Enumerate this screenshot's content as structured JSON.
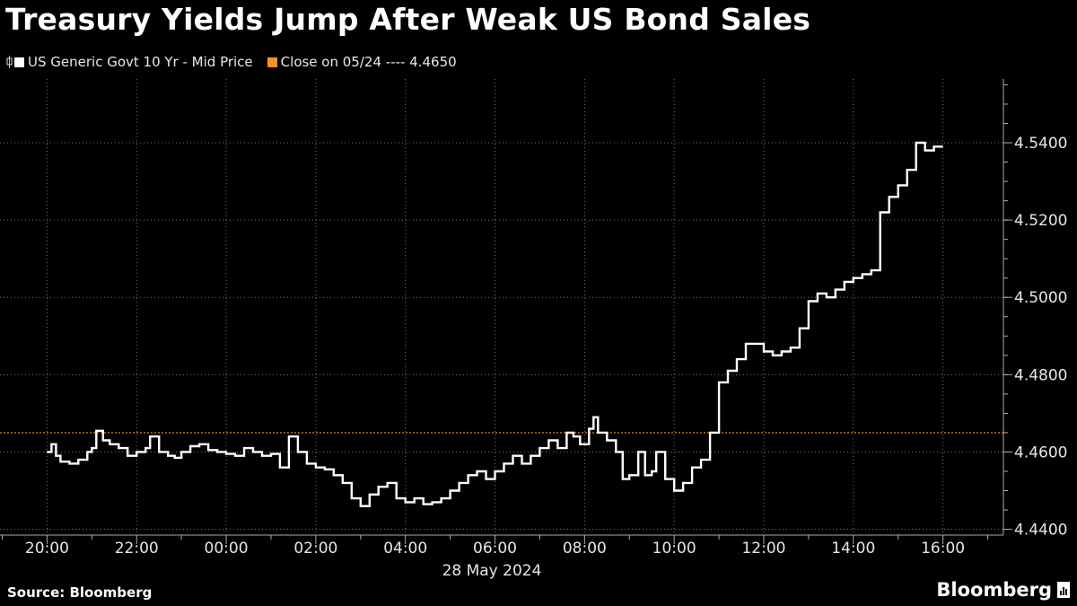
{
  "title": "Treasury Yields Jump After Weak US Bond Sales",
  "legend": {
    "series_label": "US Generic Govt 10 Yr - Mid Price",
    "close_label": "Close on 05/24 ---- 4.4650"
  },
  "source": "Source: Bloomberg",
  "logo_text": "Bloomberg",
  "colors": {
    "background": "#000000",
    "series": "#ffffff",
    "close_line": "#f7931e",
    "grid": "#777777"
  },
  "chart_data": {
    "type": "line",
    "title": "Treasury Yields Jump After Weak US Bond Sales",
    "xlabel": "28 May 2024",
    "ylabel": "",
    "x_ticks": [
      "20:00",
      "22:00",
      "00:00",
      "02:00",
      "04:00",
      "06:00",
      "08:00",
      "10:00",
      "12:00",
      "14:00",
      "16:00"
    ],
    "y_ticks": [
      4.44,
      4.46,
      4.48,
      4.5,
      4.52,
      4.54
    ],
    "ylim": [
      4.4385,
      4.5565
    ],
    "x_hour_range": [
      18.95,
      41.35
    ],
    "grid": true,
    "legend_position": "top-left",
    "reference_line": {
      "name": "Close on 05/24",
      "value": 4.465
    },
    "series": [
      {
        "name": "US Generic Govt 10 Yr - Mid Price",
        "x": [
          20.0,
          20.1,
          20.2,
          20.3,
          20.5,
          20.7,
          20.9,
          21.0,
          21.1,
          21.25,
          21.4,
          21.6,
          21.8,
          22.0,
          22.2,
          22.3,
          22.5,
          22.7,
          22.85,
          23.0,
          23.2,
          23.4,
          23.6,
          23.8,
          24.0,
          24.2,
          24.4,
          24.6,
          24.8,
          25.0,
          25.2,
          25.4,
          25.6,
          25.8,
          26.0,
          26.2,
          26.4,
          26.6,
          26.8,
          27.0,
          27.2,
          27.4,
          27.6,
          27.8,
          28.0,
          28.2,
          28.4,
          28.6,
          28.8,
          29.0,
          29.2,
          29.4,
          29.6,
          29.8,
          30.0,
          30.2,
          30.4,
          30.6,
          30.8,
          31.0,
          31.2,
          31.4,
          31.6,
          31.75,
          31.9,
          32.1,
          32.2,
          32.3,
          32.5,
          32.7,
          32.85,
          33.0,
          33.2,
          33.35,
          33.5,
          33.6,
          33.8,
          34.0,
          34.2,
          34.4,
          34.6,
          34.8,
          35.0,
          35.2,
          35.4,
          35.6,
          35.8,
          36.0,
          36.2,
          36.4,
          36.6,
          36.8,
          37.0,
          37.2,
          37.4,
          37.6,
          37.8,
          38.0,
          38.2,
          38.4,
          38.6,
          38.8,
          39.0,
          39.2,
          39.4,
          39.6,
          39.8,
          40.0
        ],
        "values": [
          4.46,
          4.462,
          4.459,
          4.4575,
          4.457,
          4.458,
          4.46,
          4.461,
          4.4655,
          4.463,
          4.462,
          4.461,
          4.459,
          4.46,
          4.461,
          4.464,
          4.46,
          4.459,
          4.4585,
          4.46,
          4.4615,
          4.462,
          4.4605,
          4.46,
          4.4595,
          4.459,
          4.461,
          4.46,
          4.459,
          4.4595,
          4.456,
          4.464,
          4.46,
          4.457,
          4.456,
          4.4555,
          4.454,
          4.452,
          4.448,
          4.446,
          4.449,
          4.451,
          4.452,
          4.448,
          4.447,
          4.448,
          4.4465,
          4.447,
          4.448,
          4.45,
          4.452,
          4.454,
          4.455,
          4.453,
          4.455,
          4.457,
          4.459,
          4.457,
          4.459,
          4.461,
          4.463,
          4.461,
          4.465,
          4.464,
          4.462,
          4.466,
          4.469,
          4.465,
          4.463,
          4.46,
          4.453,
          4.454,
          4.46,
          4.454,
          4.455,
          4.46,
          4.453,
          4.45,
          4.452,
          4.456,
          4.458,
          4.465,
          4.478,
          4.481,
          4.484,
          4.488,
          4.488,
          4.486,
          4.485,
          4.486,
          4.487,
          4.492,
          4.499,
          4.501,
          4.5,
          4.502,
          4.504,
          4.505,
          4.506,
          4.507,
          4.522,
          4.526,
          4.529,
          4.533,
          4.54,
          4.538,
          4.539,
          4.539
        ]
      }
    ]
  }
}
